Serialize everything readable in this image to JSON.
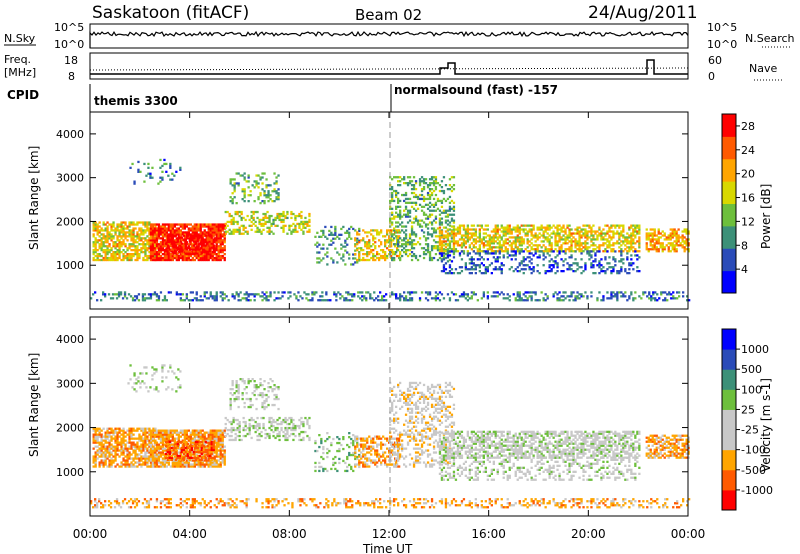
{
  "header": {
    "site": "Saskatoon (fitACF)",
    "beam": "Beam 02",
    "date": "24/Aug/2011"
  },
  "nsky_panel": {
    "left_label": "N.Sky",
    "left_ticks": [
      "10^5",
      "10^0"
    ],
    "right_ticks": [
      "10^5",
      "10^0"
    ],
    "right_label": "N.Search"
  },
  "freq_panel": {
    "left_label_line1": "Freq.",
    "left_label_line2": "[MHz]",
    "left_ticks": [
      "18",
      "8"
    ],
    "right_ticks": [
      "60",
      "0"
    ],
    "right_label": "Nave"
  },
  "cpid": {
    "label": "CPID",
    "first": "themis 3300",
    "second": "normalsound (fast) -157"
  },
  "colors": {
    "power_scale": [
      "#0000ff",
      "#2a4bb8",
      "#3c9078",
      "#6dbf3c",
      "#d8d800",
      "#ffa500",
      "#ff5a00",
      "#ff0000"
    ],
    "velocity_scale": [
      "#ff0000",
      "#ff5a00",
      "#ffa500",
      "#c8c8c8",
      "#c8c8c8",
      "#6dbf3c",
      "#3c9078",
      "#2a4bb8",
      "#0000ff"
    ]
  },
  "chart_data": [
    {
      "type": "heatmap",
      "name": "power",
      "ylabel": "Slant Range [km]",
      "yticks": [
        "1000",
        "2000",
        "3000",
        "4000"
      ],
      "ylim": [
        0,
        4500
      ],
      "colorbar_label": "Power [dB]",
      "colorbar_ticks": [
        "4",
        "8",
        "12",
        "16",
        "20",
        "24",
        "28"
      ],
      "colorbar_range": [
        0,
        30
      ]
    },
    {
      "type": "heatmap",
      "name": "velocity",
      "ylabel": "Slant Range [km]",
      "yticks": [
        "1000",
        "2000",
        "3000",
        "4000"
      ],
      "ylim": [
        0,
        4500
      ],
      "colorbar_label": "Velocity [m s-1]",
      "colorbar_ticks": [
        "-1000",
        "-500",
        "-100",
        "-25",
        "25",
        "100",
        "500",
        "1000"
      ],
      "xticks": [
        "00:00",
        "04:00",
        "08:00",
        "12:00",
        "16:00",
        "20:00",
        "00:00"
      ],
      "xlabel": "Time UT"
    }
  ]
}
